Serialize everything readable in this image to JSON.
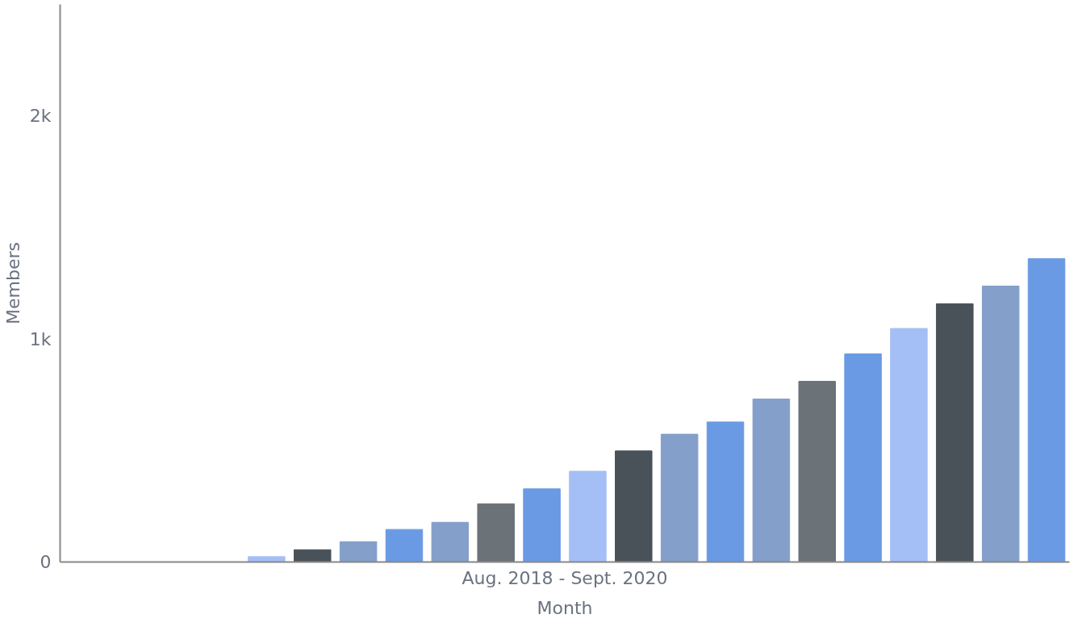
{
  "chart_data": {
    "type": "bar",
    "xlabel": "Month",
    "ylabel": "Members",
    "annotations": [
      "Aug. 2018 - Sept. 2020"
    ],
    "categories": [
      null,
      null,
      null,
      null,
      null,
      null,
      null,
      null,
      null,
      null,
      null,
      null,
      null,
      null,
      null,
      null,
      null,
      null,
      null,
      null,
      null,
      null
    ],
    "values": [
      0,
      0,
      0,
      0,
      24,
      55,
      91,
      146,
      178,
      261,
      328,
      407,
      498,
      573,
      628,
      731,
      810,
      933,
      1047,
      1158,
      1237,
      1360
    ],
    "colors": [
      "#a4bff5",
      "#4a5259",
      "#839fca",
      "#6a9ae3",
      "#a4bff5",
      "#4a5259",
      "#839fca",
      "#6a9ae3",
      "#839fca",
      "#6b7278",
      "#6a9ae3",
      "#a4bff5",
      "#4a5259",
      "#839fca",
      "#6a9ae3",
      "#839fca",
      "#6b7278",
      "#6a9ae3",
      "#a4bff5",
      "#4a5259",
      "#839fca",
      "#6a9ae3"
    ],
    "ylim": [
      0,
      2500
    ],
    "yticks": [
      0,
      {
        "value": 1000,
        "label": "1k"
      },
      {
        "value": 2000,
        "label": "2k"
      }
    ],
    "grid": false
  }
}
